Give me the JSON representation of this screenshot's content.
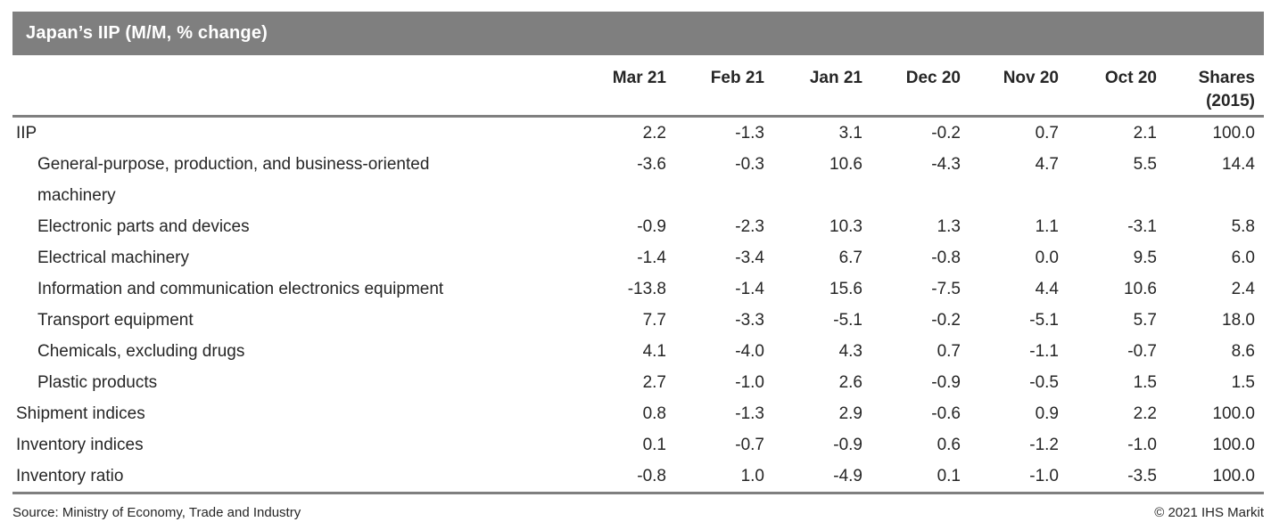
{
  "title": "Japan’s IIP (M/M, % change)",
  "colors": {
    "title_bar_bg": "#7f7f7f",
    "title_text": "#ffffff",
    "rule": "#7f7f7f",
    "text": "#262626"
  },
  "chart_data": {
    "type": "table",
    "title": "Japan’s IIP (M/M, % change)",
    "columns": [
      {
        "label": "Mar 21",
        "sub": ""
      },
      {
        "label": "Feb 21",
        "sub": ""
      },
      {
        "label": "Jan 21",
        "sub": ""
      },
      {
        "label": "Dec 20",
        "sub": ""
      },
      {
        "label": "Nov 20",
        "sub": ""
      },
      {
        "label": "Oct 20",
        "sub": ""
      },
      {
        "label": "Shares",
        "sub": "(2015)"
      }
    ],
    "rows": [
      {
        "label": "IIP",
        "indent": 0,
        "values": [
          "2.2",
          "-1.3",
          "3.1",
          "-0.2",
          "0.7",
          "2.1",
          "100.0"
        ]
      },
      {
        "label": "General-purpose, production, and business-oriented machinery",
        "indent": 1,
        "values": [
          "-3.6",
          "-0.3",
          "10.6",
          "-4.3",
          "4.7",
          "5.5",
          "14.4"
        ]
      },
      {
        "label": "Electronic parts and devices",
        "indent": 1,
        "values": [
          "-0.9",
          "-2.3",
          "10.3",
          "1.3",
          "1.1",
          "-3.1",
          "5.8"
        ]
      },
      {
        "label": "Electrical machinery",
        "indent": 1,
        "values": [
          "-1.4",
          "-3.4",
          "6.7",
          "-0.8",
          "0.0",
          "9.5",
          "6.0"
        ]
      },
      {
        "label": "Information and communication electronics equipment",
        "indent": 1,
        "values": [
          "-13.8",
          "-1.4",
          "15.6",
          "-7.5",
          "4.4",
          "10.6",
          "2.4"
        ]
      },
      {
        "label": "Transport equipment",
        "indent": 1,
        "values": [
          "7.7",
          "-3.3",
          "-5.1",
          "-0.2",
          "-5.1",
          "5.7",
          "18.0"
        ]
      },
      {
        "label": "Chemicals, excluding drugs",
        "indent": 1,
        "values": [
          "4.1",
          "-4.0",
          "4.3",
          "0.7",
          "-1.1",
          "-0.7",
          "8.6"
        ]
      },
      {
        "label": "Plastic products",
        "indent": 1,
        "values": [
          "2.7",
          "-1.0",
          "2.6",
          "-0.9",
          "-0.5",
          "1.5",
          "1.5"
        ]
      },
      {
        "label": "Shipment indices",
        "indent": 0,
        "values": [
          "0.8",
          "-1.3",
          "2.9",
          "-0.6",
          "0.9",
          "2.2",
          "100.0"
        ]
      },
      {
        "label": "Inventory indices",
        "indent": 0,
        "values": [
          "0.1",
          "-0.7",
          "-0.9",
          "0.6",
          "-1.2",
          "-1.0",
          "100.0"
        ]
      },
      {
        "label": "Inventory ratio",
        "indent": 0,
        "values": [
          "-0.8",
          "1.0",
          "-4.9",
          "0.1",
          "-1.0",
          "-3.5",
          "100.0"
        ]
      }
    ]
  },
  "footer": {
    "source": "Source: Ministry of Economy, Trade and Industry",
    "copyright": "© 2021 IHS Markit"
  }
}
